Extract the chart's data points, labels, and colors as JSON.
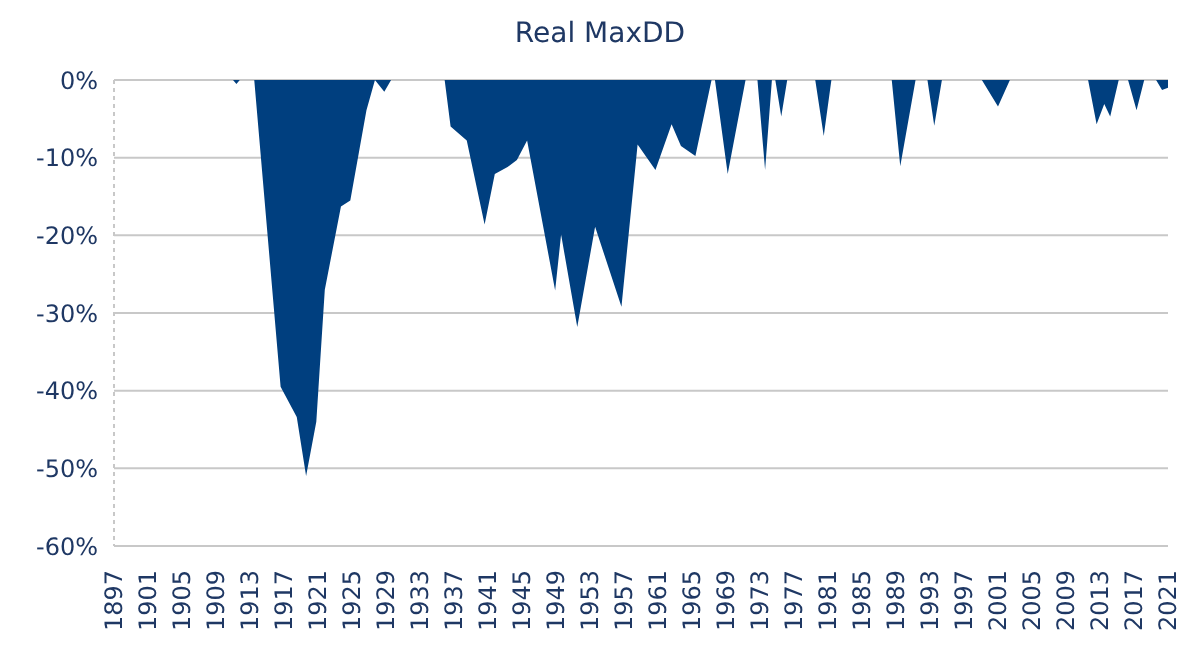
{
  "chart_data": {
    "type": "area",
    "title": "Real MaxDD",
    "color": "#003f7f",
    "grid": "y",
    "legend": false,
    "x": [
      1897,
      1911,
      1911.4,
      1911.8,
      1913.5,
      1916.6,
      1918.5,
      1919.6,
      1920.8,
      1921.8,
      1923.7,
      1924.8,
      1926.7,
      1927.7,
      1928.8,
      1929.6,
      1935.9,
      1936.6,
      1938.5,
      1940.6,
      1941.8,
      1943.3,
      1944.4,
      1945.6,
      1948.9,
      1949.6,
      1951.5,
      1953.6,
      1956.7,
      1958.6,
      1960.7,
      1962.6,
      1963.7,
      1965.4,
      1967.3,
      1967.7,
      1969.2,
      1971.3,
      1972.7,
      1973.6,
      1974.4,
      1974.8,
      1975.5,
      1976.2,
      1979.5,
      1980.5,
      1981.4,
      1988.5,
      1989.5,
      1991.3,
      1992.7,
      1993.5,
      1994.4,
      1999.1,
      2001,
      2002.4,
      2011.6,
      2012.6,
      2013.5,
      2014.2,
      2015.2,
      2016.3,
      2017.3,
      2018.2,
      2019.6,
      2020.3,
      2021
    ],
    "values": [
      0,
      0,
      -0.5,
      0,
      0,
      -39.5,
      -43.4,
      -51,
      -44,
      -27,
      -16.3,
      -15.5,
      -3.9,
      0,
      -1.5,
      0,
      0,
      -6,
      -7.8,
      -18.6,
      -12.1,
      -11.2,
      -10.3,
      -7.8,
      -27.1,
      -19.9,
      -31.8,
      -18.9,
      -29.2,
      -8.3,
      -11.6,
      -5.7,
      -8.5,
      -9.8,
      0,
      0,
      -12.1,
      0,
      0,
      -11.6,
      0,
      0,
      -4.7,
      0,
      0,
      -7.2,
      0,
      0,
      -11.1,
      0,
      0,
      -5.9,
      0,
      0,
      -3.4,
      0,
      0,
      -5.7,
      -3.1,
      -4.7,
      0,
      0,
      -3.9,
      0,
      0,
      -1.3,
      -1
    ],
    "xlim": [
      1897,
      2021
    ],
    "xticks": [
      1897,
      1901,
      1905,
      1909,
      1913,
      1917,
      1921,
      1925,
      1929,
      1933,
      1937,
      1941,
      1945,
      1949,
      1953,
      1957,
      1961,
      1965,
      1969,
      1973,
      1977,
      1981,
      1985,
      1989,
      1993,
      1997,
      2001,
      2005,
      2009,
      2013,
      2017,
      2021
    ],
    "ylim": [
      -60,
      0
    ],
    "yticks": [
      {
        "value": 0,
        "label": "0%"
      },
      {
        "value": -10,
        "label": "-10%"
      },
      {
        "value": -20,
        "label": "-20%"
      },
      {
        "value": -30,
        "label": "-30%"
      },
      {
        "value": -40,
        "label": "-40%"
      },
      {
        "value": -50,
        "label": "-50%"
      },
      {
        "value": -60,
        "label": "-60%"
      }
    ]
  }
}
